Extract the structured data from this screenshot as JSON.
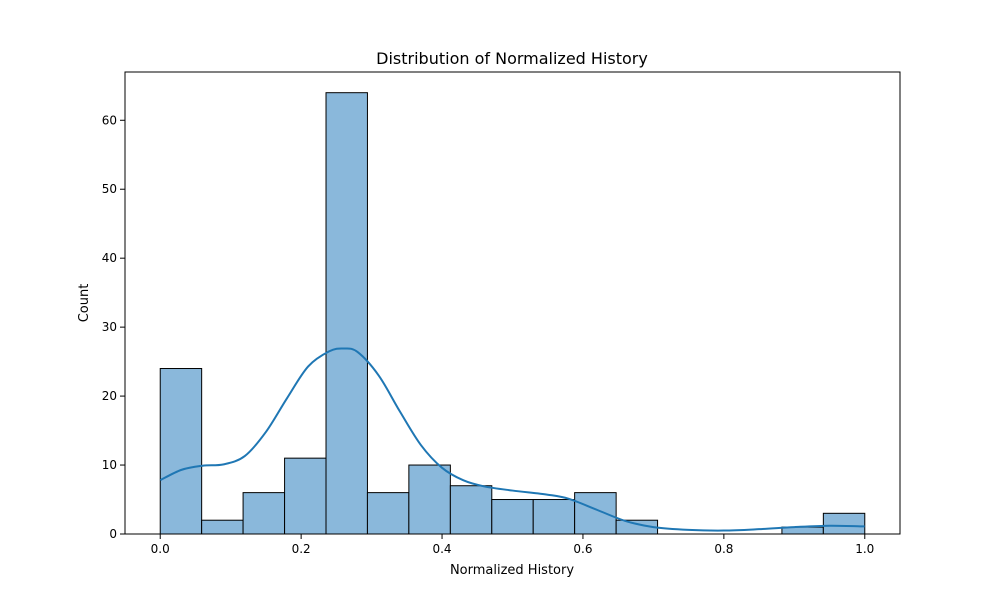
{
  "chart_data": {
    "type": "histogram",
    "title": "Distribution of Normalized History",
    "xlabel": "Normalized History",
    "ylabel": "Count",
    "xlim": [
      -0.05,
      1.05
    ],
    "ylim": [
      0,
      67
    ],
    "xticks": [
      "0.0",
      "0.2",
      "0.4",
      "0.6",
      "0.8",
      "1.0"
    ],
    "xtick_values": [
      0.0,
      0.2,
      0.4,
      0.6,
      0.8,
      1.0
    ],
    "yticks": [
      "0",
      "10",
      "20",
      "30",
      "40",
      "50",
      "60"
    ],
    "ytick_values": [
      0,
      10,
      20,
      30,
      40,
      50,
      60
    ],
    "bin_edges": [
      0.0,
      0.0588,
      0.1176,
      0.1765,
      0.2353,
      0.2941,
      0.3529,
      0.4118,
      0.4706,
      0.5294,
      0.5882,
      0.6471,
      0.7059,
      0.7647,
      0.8235,
      0.8824,
      0.9412,
      1.0
    ],
    "counts": [
      24,
      2,
      6,
      11,
      64,
      6,
      10,
      7,
      5,
      5,
      6,
      2,
      0,
      0,
      0,
      1,
      3
    ],
    "bar_color": "#8ab8db",
    "bar_edge_color": "#000000",
    "kde_color": "#1f77b4",
    "kde": {
      "x": [
        0.0,
        0.03,
        0.06,
        0.09,
        0.12,
        0.15,
        0.18,
        0.21,
        0.24,
        0.26,
        0.28,
        0.31,
        0.34,
        0.37,
        0.4,
        0.43,
        0.46,
        0.5,
        0.55,
        0.58,
        0.62,
        0.66,
        0.7,
        0.75,
        0.8,
        0.85,
        0.9,
        0.95,
        1.0
      ],
      "y": [
        7.8,
        9.3,
        9.9,
        10.1,
        11.3,
        14.8,
        19.7,
        24.3,
        26.5,
        26.9,
        26.4,
        23.0,
        17.8,
        12.9,
        9.6,
        7.8,
        6.9,
        6.3,
        5.7,
        5.1,
        3.5,
        1.9,
        1.0,
        0.6,
        0.5,
        0.7,
        1.0,
        1.2,
        1.1
      ]
    },
    "grid": false,
    "legend": "none"
  }
}
